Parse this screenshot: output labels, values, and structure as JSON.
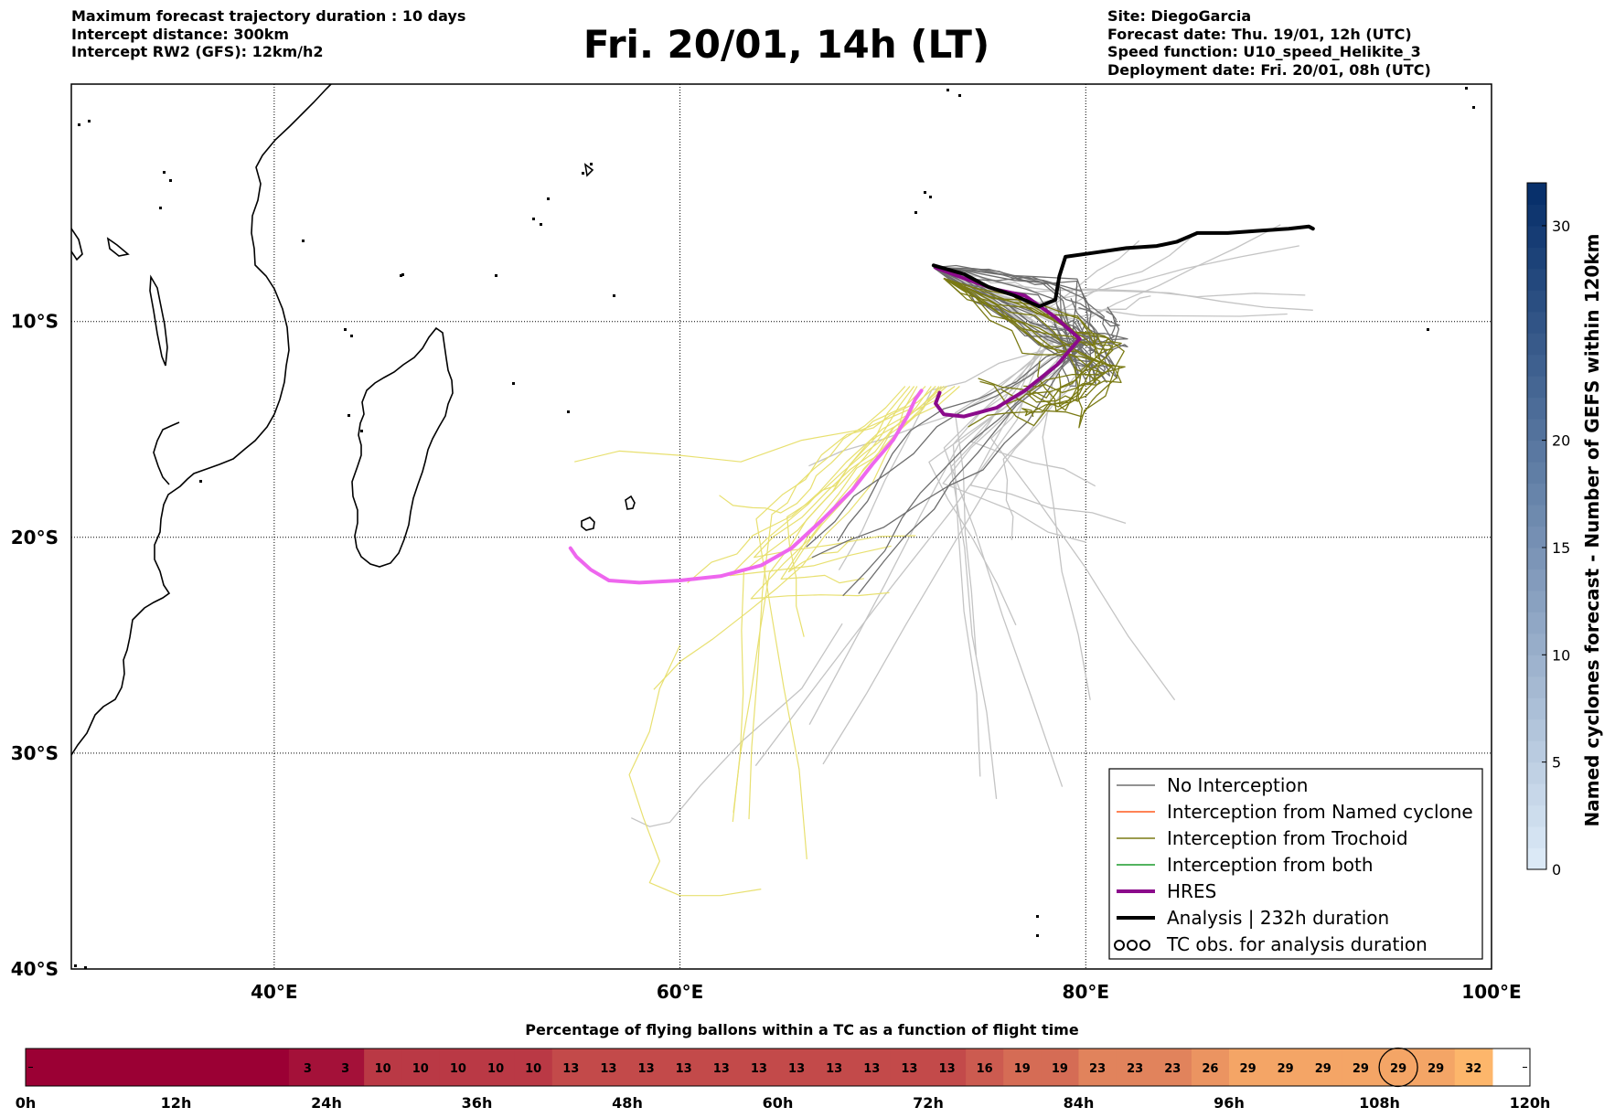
{
  "header": {
    "left_lines": [
      "Maximum forecast trajectory duration : 10 days",
      "Intercept distance: 300km",
      "Intercept RW2 (GFS):  12km/h2"
    ],
    "title": "Fri. 20/01, 14h (LT)",
    "right_lines": [
      "Site: DiegoGarcia",
      "Forecast date: Thu. 19/01, 12h (UTC)",
      "Speed function: U10_speed_Helikite_3",
      "Deployment date: Fri. 20/01, 08h (UTC)"
    ]
  },
  "map": {
    "lon_range": [
      30,
      100
    ],
    "lat_range": [
      -40,
      1
    ],
    "lon_ticks": [
      {
        "value": 40,
        "label": "40°E"
      },
      {
        "value": 60,
        "label": "60°E"
      },
      {
        "value": 80,
        "label": "80°E"
      },
      {
        "value": 100,
        "label": "100°E"
      }
    ],
    "lat_ticks": [
      {
        "value": -10,
        "label": "10°S"
      },
      {
        "value": -20,
        "label": "20°S"
      },
      {
        "value": -30,
        "label": "30°S"
      },
      {
        "value": -40,
        "label": "40°S"
      }
    ],
    "gridlines": "dotted",
    "colors": {
      "no_interception": "#6e6e6e",
      "no_interception_light": "#c4c4c4",
      "named_cyclone": "#ff5a1e",
      "trochoid": "#7a7a14",
      "trochoid_light": "#e8e070",
      "both": "#1a9a2a",
      "hres": "#8b0a8b",
      "hres_light": "#ee66ee",
      "analysis": "#000000"
    },
    "hres_track": [
      [
        72.6,
        -7.5
      ],
      [
        74,
        -8
      ],
      [
        75.5,
        -8.5
      ],
      [
        77,
        -8.8
      ],
      [
        78.5,
        -9.8
      ],
      [
        79.7,
        -10.8
      ],
      [
        78.6,
        -12
      ],
      [
        77,
        -13.2
      ],
      [
        75.6,
        -14
      ],
      [
        74,
        -14.4
      ],
      [
        73,
        -14.3
      ],
      [
        72.6,
        -13.8
      ],
      [
        72.8,
        -13.3
      ]
    ],
    "hres_light_track": [
      [
        71.9,
        -13.2
      ],
      [
        71.6,
        -13.6
      ],
      [
        71.2,
        -14.4
      ],
      [
        70.5,
        -15.5
      ],
      [
        69.5,
        -16.6
      ],
      [
        68.5,
        -17.8
      ],
      [
        67,
        -19.2
      ],
      [
        65.5,
        -20.5
      ],
      [
        64,
        -21.3
      ],
      [
        62,
        -21.8
      ],
      [
        60,
        -22
      ],
      [
        58,
        -22.1
      ],
      [
        56.5,
        -22
      ],
      [
        55.6,
        -21.5
      ],
      [
        54.9,
        -20.9
      ],
      [
        54.6,
        -20.5
      ]
    ],
    "analysis_track": [
      [
        72.5,
        -7.4
      ],
      [
        74,
        -7.8
      ],
      [
        75.2,
        -8.4
      ],
      [
        76.5,
        -8.8
      ],
      [
        77.7,
        -9.3
      ],
      [
        78.5,
        -9
      ],
      [
        78.7,
        -7.9
      ],
      [
        79,
        -7
      ],
      [
        80.5,
        -6.8
      ],
      [
        82,
        -6.6
      ],
      [
        83.5,
        -6.5
      ],
      [
        84.5,
        -6.3
      ],
      [
        85.5,
        -5.9
      ],
      [
        87,
        -5.9
      ],
      [
        88.5,
        -5.8
      ],
      [
        90,
        -5.7
      ],
      [
        91,
        -5.6
      ],
      [
        91.2,
        -5.7
      ]
    ],
    "legend": [
      {
        "label": "No Interception",
        "style": "no_interception",
        "width": 1.5
      },
      {
        "label": "Interception from Named cyclone",
        "style": "named_cyclone",
        "width": 1.5
      },
      {
        "label": "Interception from Trochoid",
        "style": "trochoid",
        "width": 1.5
      },
      {
        "label": "Interception from both",
        "style": "both",
        "width": 1.5
      },
      {
        "label": "HRES",
        "style": "hres",
        "width": 4
      },
      {
        "label": "Analysis | 232h duration",
        "style": "analysis",
        "width": 4
      },
      {
        "label": "TC obs. for analysis duration",
        "style": "tc_obs",
        "width": 0
      }
    ]
  },
  "colorbar": {
    "label": "Named cyclones forecast - Number of GEFS within 120km",
    "min": 0,
    "max": 32,
    "ticks": [
      0,
      5,
      10,
      15,
      20,
      30
    ],
    "light_color": "#dbe9f6",
    "dark_color": "#08306b"
  },
  "chart_data": {
    "type": "heatmap",
    "title": "Percentage of flying ballons within a TC as a function of flight time",
    "x_ticks": [
      "0h",
      "12h",
      "24h",
      "36h",
      "48h",
      "60h",
      "72h",
      "84h",
      "96h",
      "108h",
      "120h"
    ],
    "x_range_hours": [
      0,
      120
    ],
    "cell_hours": 3,
    "values": [
      0,
      0,
      0,
      0,
      0,
      0,
      0,
      3,
      3,
      10,
      10,
      10,
      10,
      10,
      13,
      13,
      13,
      13,
      13,
      13,
      13,
      13,
      13,
      13,
      13,
      16,
      19,
      19,
      23,
      23,
      23,
      26,
      29,
      29,
      29,
      29,
      29,
      29,
      32
    ],
    "highlighted_index": 36,
    "low_color": "#9b0034",
    "high_color": "#fdb66b"
  }
}
